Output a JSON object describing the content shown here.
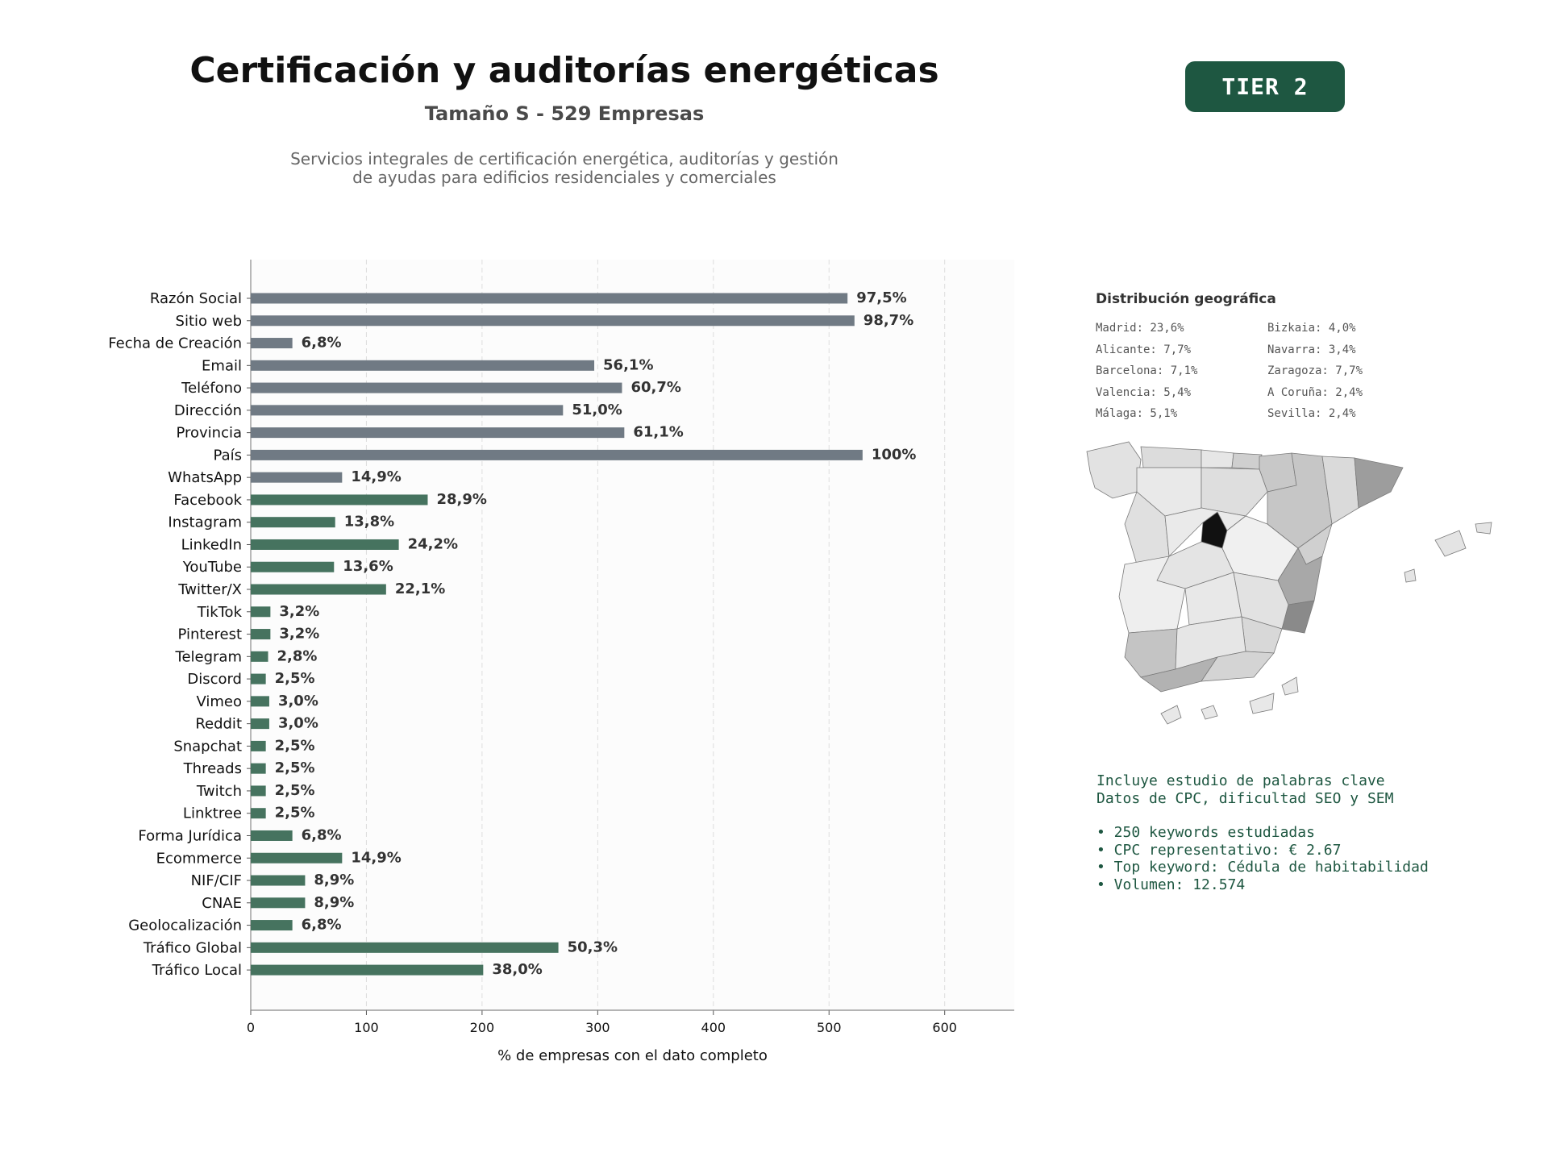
{
  "header": {
    "title": "Certificación y auditorías energéticas",
    "subtitle": "Tamaño S - 529 Empresas",
    "description_line1": "Servicios integrales de certificación energética, auditorías y gestión",
    "description_line2": "de ayudas para edificios residenciales y comerciales",
    "tier_badge": "TIER 2"
  },
  "colors": {
    "contact_bar": "#707a84",
    "digital_bar": "#46735f",
    "badge": "#1e5741",
    "keyword_text": "#1e5741"
  },
  "chart_data": {
    "type": "bar",
    "orientation": "horizontal",
    "xlabel": "% de empresas con el dato completo",
    "xlim": [
      0,
      660
    ],
    "xticks": [
      0,
      100,
      200,
      300,
      400,
      500,
      600
    ],
    "grid": "vertical dashed",
    "categories": [
      "Razón Social",
      "Sitio web",
      "Fecha de Creación",
      "Email",
      "Teléfono",
      "Dirección",
      "Provincia",
      "País",
      "WhatsApp",
      "Facebook",
      "Instagram",
      "LinkedIn",
      "YouTube",
      "Twitter/X",
      "TikTok",
      "Pinterest",
      "Telegram",
      "Discord",
      "Vimeo",
      "Reddit",
      "Snapchat",
      "Threads",
      "Twitch",
      "Linktree",
      "Forma Jurídica",
      "Ecommerce",
      "NIF/CIF",
      "CNAE",
      "Geolocalización",
      "Tráfico Global",
      "Tráfico Local"
    ],
    "values": [
      516,
      522,
      36,
      297,
      321,
      270,
      323,
      529,
      79,
      153,
      73,
      128,
      72,
      117,
      17,
      17,
      15,
      13,
      16,
      16,
      13,
      13,
      13,
      13,
      36,
      79,
      47,
      47,
      36,
      266,
      201
    ],
    "labels": [
      "97,5%",
      "98,7%",
      "6,8%",
      "56,1%",
      "60,7%",
      "51,0%",
      "61,1%",
      "100%",
      "14,9%",
      "28,9%",
      "13,8%",
      "24,2%",
      "13,6%",
      "22,1%",
      "3,2%",
      "3,2%",
      "2,8%",
      "2,5%",
      "3,0%",
      "3,0%",
      "2,5%",
      "2,5%",
      "2,5%",
      "2,5%",
      "6,8%",
      "14,9%",
      "8,9%",
      "8,9%",
      "6,8%",
      "50,3%",
      "38,0%"
    ],
    "group": [
      "contact",
      "contact",
      "contact",
      "contact",
      "contact",
      "contact",
      "contact",
      "contact",
      "contact",
      "digital",
      "digital",
      "digital",
      "digital",
      "digital",
      "digital",
      "digital",
      "digital",
      "digital",
      "digital",
      "digital",
      "digital",
      "digital",
      "digital",
      "digital",
      "digital",
      "digital",
      "digital",
      "digital",
      "digital",
      "digital",
      "digital"
    ]
  },
  "geo": {
    "title": "Distribución geográfica",
    "items": [
      "Madrid: 23,6%",
      "Bizkaia: 4,0%",
      "Alicante: 7,7%",
      "Navarra: 3,4%",
      "Barcelona: 7,1%",
      "Zaragoza: 7,7%",
      "Valencia: 5,4%",
      "A Coruña: 2,4%",
      "Málaga: 5,1%",
      "Sevilla: 2,4%"
    ]
  },
  "keywords": {
    "line1": "Incluye estudio de palabras clave",
    "line2": "Datos de CPC, dificultad SEO y SEM",
    "bullets": [
      "• 250 keywords estudiadas",
      "• CPC representativo: € 2.67",
      "• Top keyword: Cédula de habitabilidad",
      "• Volumen: 12.574"
    ]
  }
}
